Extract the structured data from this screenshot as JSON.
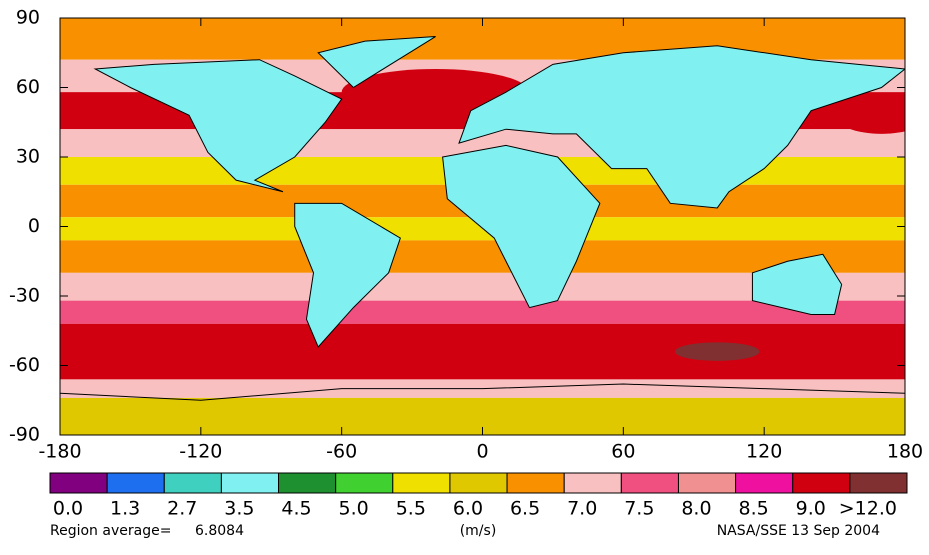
{
  "map": {
    "xticks": [
      -180,
      -120,
      -60,
      0,
      60,
      120,
      180
    ],
    "yticks": [
      -90,
      -60,
      -30,
      0,
      30,
      60,
      90
    ],
    "xlim": [
      -180,
      180
    ],
    "ylim": [
      -90,
      90
    ],
    "levels": [
      {
        "label": "0.0",
        "color": "#800080"
      },
      {
        "label": "1.3",
        "color": "#1e6ff0"
      },
      {
        "label": "2.7",
        "color": "#40d0c0"
      },
      {
        "label": "3.5",
        "color": "#80f0f0"
      },
      {
        "label": "4.5",
        "color": "#1e9030"
      },
      {
        "label": "5.0",
        "color": "#40d030"
      },
      {
        "label": "5.5",
        "color": "#f0e000"
      },
      {
        "label": "6.0",
        "color": "#e0c800"
      },
      {
        "label": "6.5",
        "color": "#f89000"
      },
      {
        "label": "7.0",
        "color": "#f8c0c0"
      },
      {
        "label": "7.5",
        "color": "#f05080"
      },
      {
        "label": "8.0",
        "color": "#f09090"
      },
      {
        "label": "8.5",
        "color": "#f010a0"
      },
      {
        "label": "9.0",
        "color": "#d00010"
      },
      {
        "label": ">12.0",
        "color": "#803030"
      }
    ],
    "average_label": "Region average=",
    "average_value": "6.8084",
    "unit": "(m/s)",
    "credit": "NASA/SSE  13 Sep 2004"
  }
}
